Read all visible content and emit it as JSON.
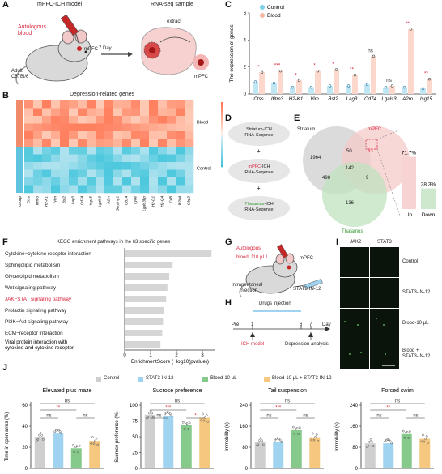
{
  "panels": [
    "A",
    "B",
    "C",
    "D",
    "E",
    "F",
    "G",
    "H",
    "I",
    "J"
  ],
  "panel_a": {
    "model_label": "mPFC-ICH model",
    "sample_label": "RNA-seq sample",
    "autologous": [
      "Autologous",
      "blood"
    ],
    "mpfc": "mPFC",
    "mpfc2": "mPFC",
    "days": "7 Day",
    "extract": "extract",
    "adult": "Adult",
    "strain": "C57Bl/6"
  },
  "panel_b": {
    "title": "Depression-related genes",
    "group_blood": "Blood",
    "group_control": "Control",
    "legend_ticks": [
      "1.5",
      "1",
      "0.5",
      "0",
      "−0.5",
      "−1",
      "−1.5"
    ],
    "genes": [
      "Group",
      "Ctss",
      "Ifitm3",
      "H2-K1",
      "Vim",
      "Bst2",
      "Lag3",
      "Cd74",
      "Isg15",
      "Lgals3",
      "A2m",
      "Serping1",
      "Cd14",
      "Ly6e",
      "Lgals3bp",
      "H2-D1",
      "H2-Q4",
      "Cd8",
      "Ifi204",
      "Gbp2"
    ]
  },
  "panel_c": {
    "legend": [
      "Control",
      "Blood"
    ],
    "ylabel": "The expression of genes",
    "chart_data": {
      "type": "bar",
      "categories": [
        "Ctss",
        "Ifitm3",
        "H2-K1",
        "Vim",
        "Bst2",
        "Lag3",
        "Cd74",
        "Lgals3",
        "A2m",
        "Isg15"
      ],
      "series": [
        {
          "name": "Control",
          "values": [
            0.9,
            0.8,
            0.5,
            0.5,
            0.6,
            0.6,
            0.7,
            0.5,
            0.5,
            0.4
          ]
        },
        {
          "name": "Blood",
          "values": [
            1.6,
            1.7,
            1.0,
            1.7,
            1.8,
            1.4,
            2.8,
            0.6,
            4.8,
            1.1
          ]
        }
      ],
      "significance": [
        "*",
        "***",
        "*",
        "*",
        "*",
        "**",
        "ns",
        "ns",
        "**",
        "**"
      ],
      "ylim": [
        0,
        6
      ],
      "yticks": [
        0,
        2,
        4,
        6
      ]
    }
  },
  "panel_d": {
    "items": [
      {
        "prefix": "Striatum",
        "suffix": "-ICH",
        "line2": "RNA-Seqence"
      },
      {
        "prefix": "mPFC",
        "suffix": "-ICH",
        "line2": "RNA-Seqence"
      },
      {
        "prefix": "Thalamus",
        "suffix": "-ICH",
        "line2": "RNA-Seqence"
      }
    ],
    "plus": "+"
  },
  "panel_e": {
    "striatum": "Striatum",
    "mpfc": "mPFC",
    "thalamus": "Thalamus",
    "counts": {
      "striatum_only": "1964",
      "str_mpfc": "50",
      "mpfc_only": "63",
      "all": "142",
      "str_thal": "498",
      "mpfc_thal": "9",
      "thal_only": "136"
    },
    "chart_data": {
      "type": "bar",
      "categories": [
        "Up",
        "Down"
      ],
      "values": [
        71.7,
        28.3
      ],
      "labels": [
        "71.7%",
        "28.3%"
      ]
    }
  },
  "panel_f": {
    "title": "KEGG  enrichment pathways in the 63 specific genes",
    "xlabel": "EnrichmentScore (−log10(pvalue))",
    "chart_data": {
      "type": "bar",
      "orientation": "horizontal",
      "categories": [
        "Cytokine−cytokine receptor interaction",
        "Sphingolipid metabolism",
        "Glycerolipid metabolism",
        "Wnt signaling pathway",
        "JAK−STAT signaling pathway",
        "Prolactin signaling pathway",
        "PI3K−Akt signaling pathway",
        "ECM−receptor interaction",
        "Viral protein interaction with cytokine and cytokine receptor"
      ],
      "values": [
        3.35,
        1.85,
        1.72,
        1.65,
        1.6,
        1.52,
        1.48,
        1.45,
        1.38
      ],
      "highlight": "JAK−STAT signaling pathway",
      "xlim": [
        0,
        3.5
      ],
      "xticks": [
        0,
        1,
        2,
        3
      ]
    }
  },
  "panel_g": {
    "autologous": "Autologous",
    "blood": "blood（10 μL）",
    "mpfc": "mPFC",
    "intraperitoneal": "Intraperitoneal",
    "injection": "injection",
    "drug": "STAT3-IN-12"
  },
  "panel_h": {
    "drugs": "Drugs injection",
    "ticks": [
      "Pre",
      "1",
      "6",
      "7",
      "Day"
    ],
    "ich": "ICH model",
    "depression": "Depression analysis"
  },
  "panel_i": {
    "cols": [
      "JAK2",
      "STAT3"
    ],
    "rows": [
      "Control",
      "STAT3-IN-12",
      "Blood-10 μL",
      "Blood +",
      "STAT3-IN-12"
    ]
  },
  "panel_j": {
    "legend": [
      "Control",
      "STAT3-IN-12",
      "Blood-10 μL",
      "Blood-10 μL + STAT3-IN-12"
    ],
    "colors": [
      "#cfcfcf",
      "#9fd3f0",
      "#85c98b",
      "#f6c77e"
    ],
    "charts": [
      {
        "title": "Elevated plus maze",
        "ylabel": "Time in open arms (%)",
        "yticks": [
          "0",
          "20",
          "40",
          "60"
        ],
        "ylim": [
          0,
          60
        ],
        "values": [
          30,
          33,
          19,
          26
        ],
        "sig": [
          [
            "ns",
            0,
            3
          ],
          [
            "**",
            0,
            2
          ],
          [
            "ns",
            0,
            1
          ],
          [
            "ns",
            2,
            3
          ]
        ]
      },
      {
        "title": "Sucrose preference",
        "ylabel": "Sucrose preference (%)",
        "yticks": [
          "0",
          "25",
          "50",
          "75",
          "100"
        ],
        "ylim": [
          0,
          100
        ],
        "values": [
          85,
          83,
          68,
          80
        ],
        "sig": [
          [
            "ns",
            0,
            3
          ],
          [
            "***",
            0,
            2
          ],
          [
            "ns",
            0,
            1
          ],
          [
            "*",
            2,
            3
          ]
        ]
      },
      {
        "title": "Tail suspension",
        "ylabel": "Immobility (s)",
        "yticks": [
          "0",
          "80",
          "160",
          "240"
        ],
        "ylim": [
          0,
          240
        ],
        "values": [
          100,
          100,
          145,
          118
        ],
        "sig": [
          [
            "ns",
            0,
            3
          ],
          [
            "***",
            0,
            2
          ],
          [
            "ns",
            0,
            1
          ],
          [
            "ns",
            2,
            3
          ]
        ]
      },
      {
        "title": "Forced swim",
        "ylabel": "Immobility (s)",
        "yticks": [
          "0",
          "80",
          "160",
          "240"
        ],
        "ylim": [
          0,
          240
        ],
        "values": [
          95,
          95,
          130,
          112
        ],
        "sig": [
          [
            "ns",
            0,
            3
          ],
          [
            "**",
            0,
            2
          ],
          [
            "ns",
            0,
            1
          ],
          [
            "ns",
            2,
            3
          ]
        ]
      }
    ]
  }
}
